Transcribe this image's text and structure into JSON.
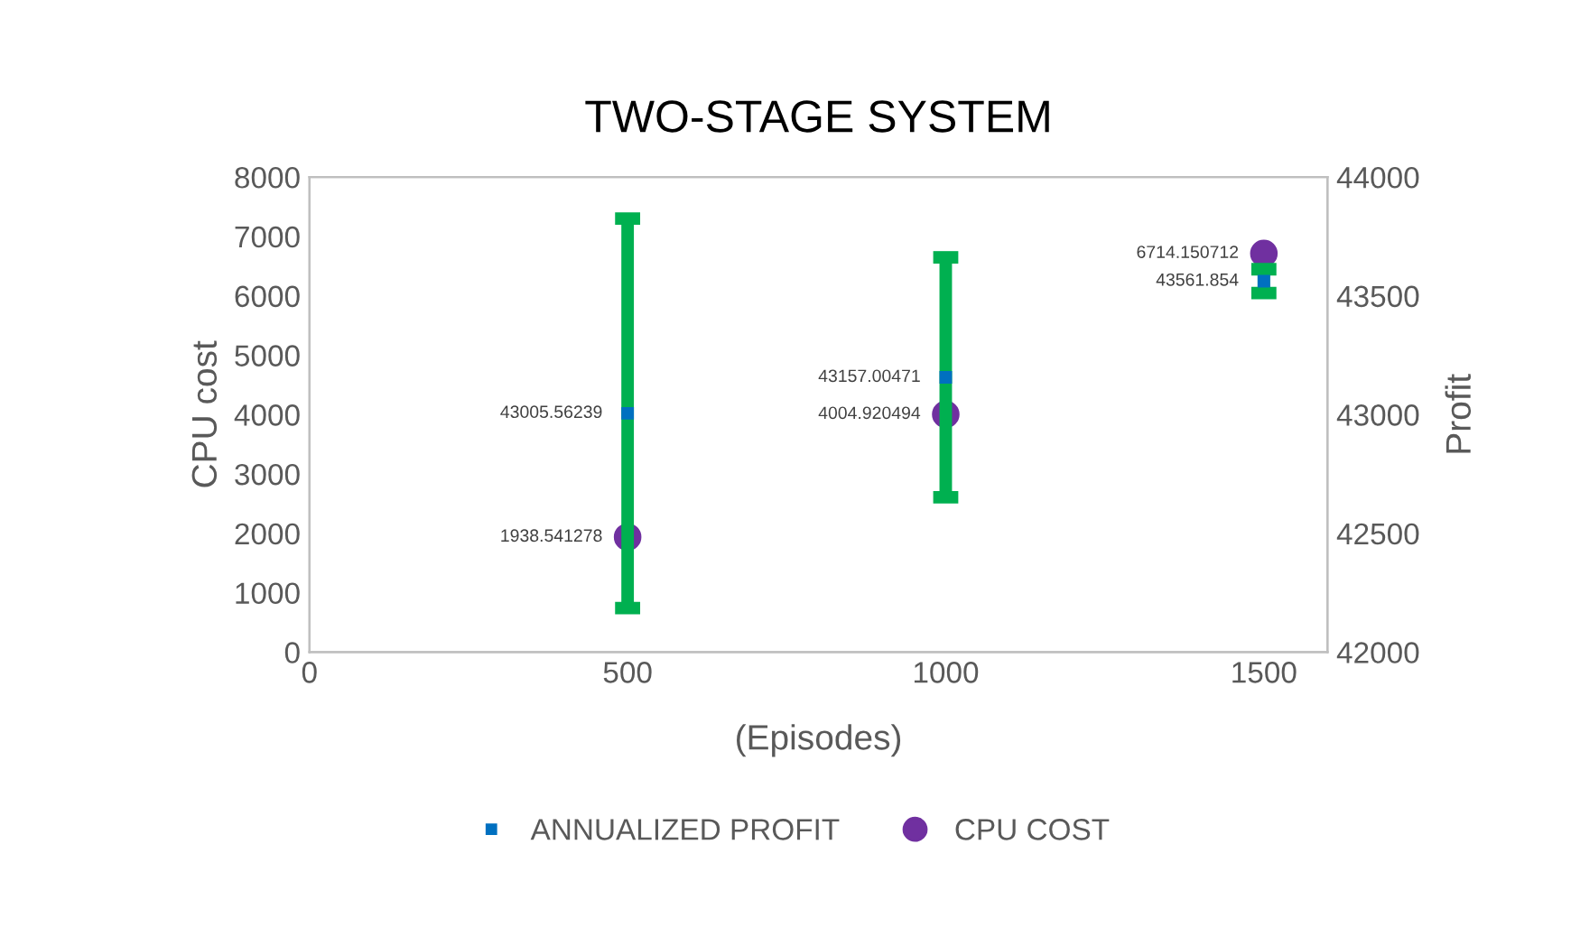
{
  "chart_data": {
    "type": "scatter",
    "title": "TWO-STAGE SYSTEM",
    "xlabel": "(Episodes)",
    "ylabel": "CPU cost",
    "y2label": "Profit",
    "x": [
      500,
      1000,
      1500
    ],
    "series": [
      {
        "name": "ANNUALIZED PROFIT",
        "color": "#0070c0",
        "marker": "square",
        "axis": "y2",
        "values": [
          43005.56239,
          43157.00471,
          43561.854
        ],
        "errors": [
          820,
          505,
          50
        ]
      },
      {
        "name": "CPU COST",
        "color": "#7030a0",
        "marker": "circle",
        "values": [
          1938.541278,
          4004.920494,
          6714.150712
        ]
      }
    ],
    "xlim": [
      0,
      1600
    ],
    "xticks": [
      0,
      500,
      1000,
      1500
    ],
    "ylim": [
      0,
      8000
    ],
    "yticks": [
      0,
      1000,
      2000,
      3000,
      4000,
      5000,
      6000,
      7000,
      8000
    ],
    "y2lim": [
      42000,
      44000
    ],
    "y2ticks": [
      42000,
      42500,
      43000,
      43500,
      44000
    ],
    "data_labels": true,
    "grid": false,
    "legend": "bottom"
  }
}
